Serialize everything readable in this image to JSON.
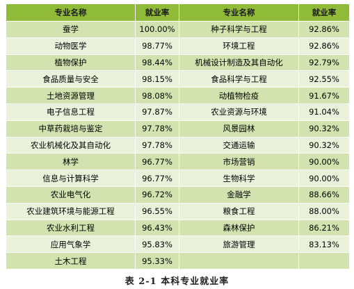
{
  "headers": [
    "专业名称",
    "就业率",
    "专业名称",
    "就业率"
  ],
  "rows": [
    [
      "蚕学",
      "100.00%",
      "种子科学与工程",
      "92.86%"
    ],
    [
      "动物医学",
      "98.77%",
      "环境工程",
      "92.86%"
    ],
    [
      "植物保护",
      "98.44%",
      "机械设计制造及其自动化",
      "92.79%"
    ],
    [
      "食品质量与安全",
      "98.15%",
      "食品科学与工程",
      "92.55%"
    ],
    [
      "土地资源管理",
      "98.08%",
      "动植物检疫",
      "91.67%"
    ],
    [
      "电子信息工程",
      "97.87%",
      "农业资源与环境",
      "91.04%"
    ],
    [
      "中草药栽培与鉴定",
      "97.78%",
      "风景园林",
      "90.32%"
    ],
    [
      "农业机械化及其自动化",
      "97.78%",
      "交通运输",
      "90.32%"
    ],
    [
      "林学",
      "96.77%",
      "市场营销",
      "90.00%"
    ],
    [
      "信息与计算科学",
      "96.77%",
      "生物科学",
      "90.00%"
    ],
    [
      "农业电气化",
      "96.72%",
      "金融学",
      "88.66%"
    ],
    [
      "农业建筑环境与能源工程",
      "96.55%",
      "粮食工程",
      "88.00%"
    ],
    [
      "农业水利工程",
      "96.43%",
      "森林保护",
      "86.21%"
    ],
    [
      "应用气象学",
      "95.83%",
      "旅游管理",
      "83.13%"
    ],
    [
      "土木工程",
      "95.33%",
      "",
      ""
    ]
  ],
  "caption": "表 2-1   本科专业就业率",
  "colors": {
    "header_bg": "#8fbb39",
    "row_odd_bg": "#d3e3b0",
    "row_even_bg": "#ebf2dc"
  }
}
